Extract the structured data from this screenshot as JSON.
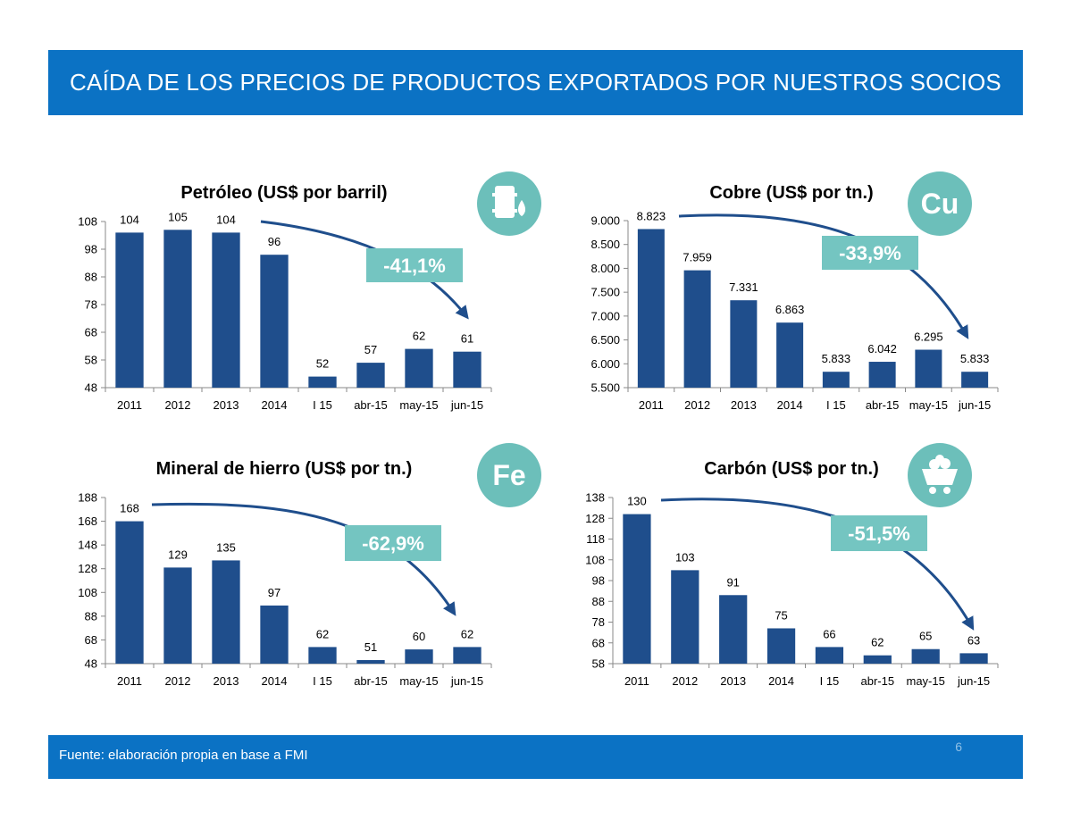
{
  "header": {
    "title": "CAÍDA DE LOS PRECIOS DE PRODUCTOS EXPORTADOS POR NUESTROS SOCIOS"
  },
  "footer": {
    "source": "Fuente: elaboración propia en base a FMI",
    "page_number": "6"
  },
  "colors": {
    "header_bg": "#0b72c4",
    "bar": "#1f4e8c",
    "arrow": "#1f4e8c",
    "badge": "#74c5c1",
    "icon_bg": "#6cbfba"
  },
  "chart_data": [
    {
      "id": "petroleo",
      "type": "bar",
      "title": "Petróleo (US$ por barril)",
      "categories": [
        "2011",
        "2012",
        "2013",
        "2014",
        "I 15",
        "abr-15",
        "may-15",
        "jun-15"
      ],
      "values": [
        104,
        105,
        104,
        96,
        52,
        57,
        62,
        61
      ],
      "value_labels": [
        "104",
        "105",
        "104",
        "96",
        "52",
        "57",
        "62",
        "61"
      ],
      "ylim": [
        48,
        108
      ],
      "yticks": [
        48,
        58,
        68,
        78,
        88,
        98,
        108
      ],
      "ytick_labels": [
        "48",
        "58",
        "68",
        "78",
        "88",
        "98",
        "108"
      ],
      "annotation": "-41,1%",
      "icon": {
        "name": "oil-barrel-icon",
        "text": ""
      },
      "xlabel": "",
      "ylabel": ""
    },
    {
      "id": "cobre",
      "type": "bar",
      "title": "Cobre (US$ por tn.)",
      "categories": [
        "2011",
        "2012",
        "2013",
        "2014",
        "I 15",
        "abr-15",
        "may-15",
        "jun-15"
      ],
      "values": [
        8823,
        7959,
        7331,
        6863,
        5833,
        6042,
        6295,
        5833
      ],
      "value_labels": [
        "8.823",
        "7.959",
        "7.331",
        "6.863",
        "5.833",
        "6.042",
        "6.295",
        "5.833"
      ],
      "ylim": [
        5500,
        9000
      ],
      "yticks": [
        5500,
        6000,
        6500,
        7000,
        7500,
        8000,
        8500,
        9000
      ],
      "ytick_labels": [
        "5.500",
        "6.000",
        "6.500",
        "7.000",
        "7.500",
        "8.000",
        "8.500",
        "9.000"
      ],
      "annotation": "-33,9%",
      "icon": {
        "name": "copper-element-icon",
        "text": "Cu"
      },
      "xlabel": "",
      "ylabel": ""
    },
    {
      "id": "hierro",
      "type": "bar",
      "title": "Mineral de hierro (US$ por tn.)",
      "categories": [
        "2011",
        "2012",
        "2013",
        "2014",
        "I 15",
        "abr-15",
        "may-15",
        "jun-15"
      ],
      "values": [
        168,
        129,
        135,
        97,
        62,
        51,
        60,
        62
      ],
      "value_labels": [
        "168",
        "129",
        "135",
        "97",
        "62",
        "51",
        "60",
        "62"
      ],
      "ylim": [
        48,
        188
      ],
      "yticks": [
        48,
        68,
        88,
        108,
        128,
        148,
        168,
        188
      ],
      "ytick_labels": [
        "48",
        "68",
        "88",
        "108",
        "128",
        "148",
        "168",
        "188"
      ],
      "annotation": "-62,9%",
      "icon": {
        "name": "iron-element-icon",
        "text": "Fe"
      },
      "xlabel": "",
      "ylabel": ""
    },
    {
      "id": "carbon",
      "type": "bar",
      "title": "Carbón (US$ por tn.)",
      "categories": [
        "2011",
        "2012",
        "2013",
        "2014",
        "I 15",
        "abr-15",
        "may-15",
        "jun-15"
      ],
      "values": [
        130,
        103,
        91,
        75,
        66,
        62,
        65,
        63
      ],
      "value_labels": [
        "130",
        "103",
        "91",
        "75",
        "66",
        "62",
        "65",
        "63"
      ],
      "ylim": [
        58,
        138
      ],
      "yticks": [
        58,
        68,
        78,
        88,
        98,
        108,
        118,
        128,
        138
      ],
      "ytick_labels": [
        "58",
        "68",
        "78",
        "88",
        "98",
        "108",
        "118",
        "128",
        "138"
      ],
      "annotation": "-51,5%",
      "icon": {
        "name": "coal-cart-icon",
        "text": ""
      },
      "xlabel": "",
      "ylabel": ""
    }
  ]
}
